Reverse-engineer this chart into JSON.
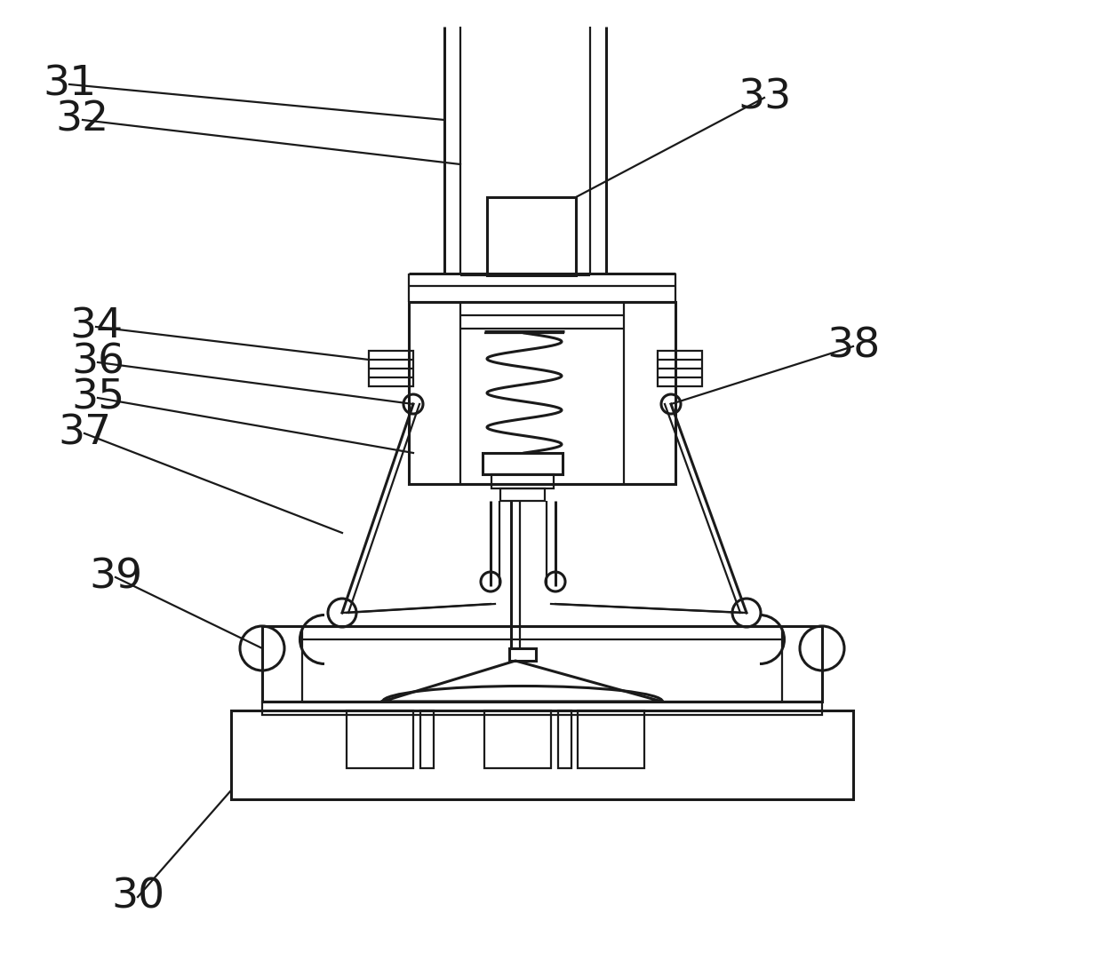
{
  "bg_color": "#ffffff",
  "line_color": "#1a1a1a",
  "lw": 1.6,
  "lw2": 2.2,
  "label_fontsize": 34,
  "figsize": [
    12.4,
    10.99
  ],
  "dpi": 100
}
